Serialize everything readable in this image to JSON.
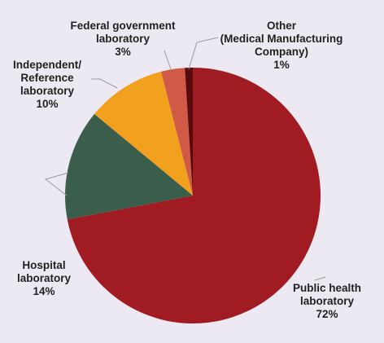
{
  "chart_data": {
    "type": "pie",
    "title": "",
    "start_angle_deg": 0,
    "direction": "clockwise",
    "legend": "none",
    "slices": [
      {
        "key": "public",
        "label_lines": [
          "Public health",
          "laboratory",
          "72%"
        ],
        "value": 72,
        "color": "#a01c22"
      },
      {
        "key": "hospital",
        "label_lines": [
          "Hospital",
          "laboratory",
          "14%"
        ],
        "value": 14,
        "color": "#3a5e4b"
      },
      {
        "key": "independent",
        "label_lines": [
          "Independent/",
          "Reference",
          "laboratory",
          "10%"
        ],
        "value": 10,
        "color": "#f2a11f"
      },
      {
        "key": "federal",
        "label_lines": [
          "Federal government",
          "laboratory",
          "3%"
        ],
        "value": 3,
        "color": "#d05a46"
      },
      {
        "key": "other",
        "label_lines": [
          "Other",
          "(Medical Manufacturing",
          "Company)",
          "1%"
        ],
        "value": 1,
        "color": "#5a0a0c"
      }
    ]
  }
}
